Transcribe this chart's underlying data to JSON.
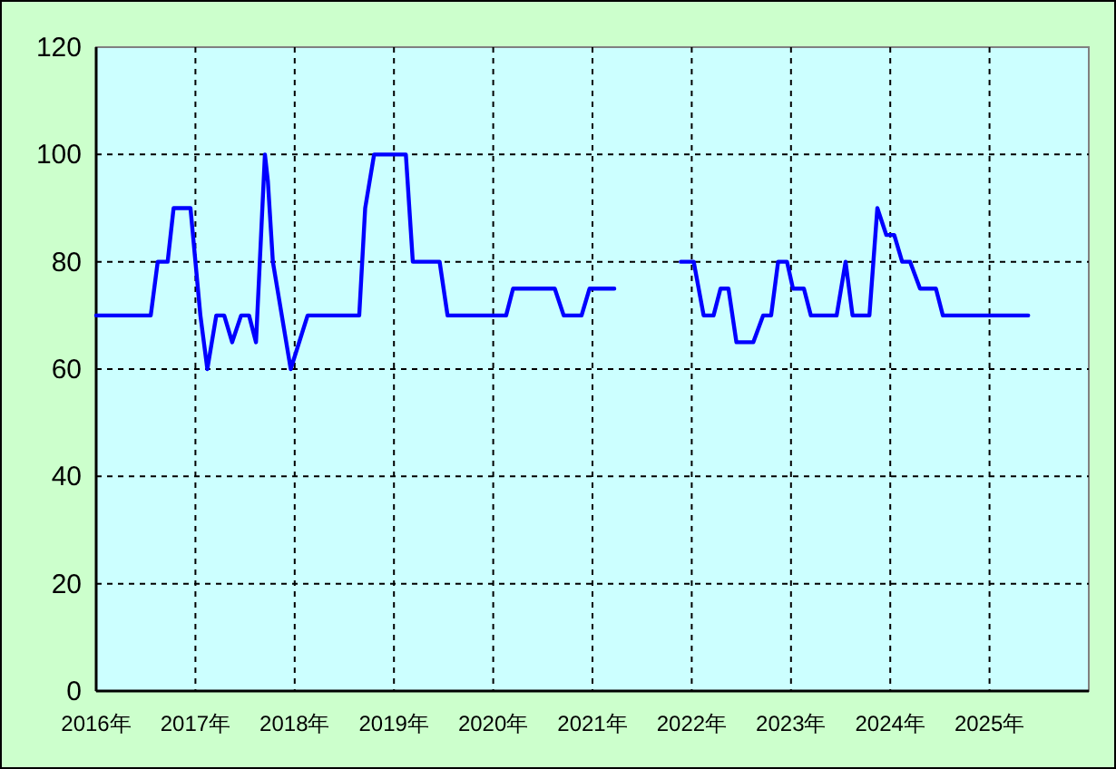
{
  "chart_data": {
    "type": "line",
    "color": "#0000ff",
    "x": [
      2016.0,
      2016.55,
      2016.62,
      2016.72,
      2016.78,
      2016.95,
      2017.05,
      2017.12,
      2017.21,
      2017.29,
      2017.37,
      2017.46,
      2017.54,
      2017.61,
      2017.7,
      2017.73,
      2017.78,
      2017.96,
      2018.13,
      2018.65,
      2018.71,
      2018.8,
      2019.12,
      2019.19,
      2019.46,
      2019.54,
      2020.13,
      2020.2,
      2020.62,
      2020.71,
      2020.89,
      2020.97,
      2021.22,
      null,
      2021.89,
      2022.02,
      2022.12,
      2022.22,
      2022.29,
      2022.37,
      2022.45,
      2022.62,
      2022.72,
      2022.8,
      2022.87,
      2022.96,
      2023.02,
      2023.13,
      2023.2,
      2023.46,
      2023.55,
      2023.62,
      2023.79,
      2023.87,
      2023.96,
      2024.04,
      2024.12,
      2024.2,
      2024.3,
      2024.46,
      2024.53,
      2025.39
    ],
    "values": [
      70,
      70,
      80,
      80,
      90,
      90,
      70,
      60,
      70,
      70,
      65,
      70,
      70,
      65,
      100,
      95,
      80,
      60,
      70,
      70,
      90,
      100,
      100,
      80,
      80,
      70,
      70,
      75,
      75,
      70,
      70,
      75,
      75,
      null,
      80,
      80,
      70,
      70,
      75,
      75,
      65,
      65,
      70,
      70,
      80,
      80,
      75,
      75,
      70,
      70,
      80,
      70,
      70,
      90,
      85,
      85,
      80,
      80,
      75,
      75,
      70,
      70
    ],
    "xlim": [
      2016,
      2026
    ],
    "xticks": [
      {
        "value": 2016,
        "label": "2016年"
      },
      {
        "value": 2017,
        "label": "2017年"
      },
      {
        "value": 2018,
        "label": "2018年"
      },
      {
        "value": 2019,
        "label": "2019年"
      },
      {
        "value": 2020,
        "label": "2020年"
      },
      {
        "value": 2021,
        "label": "2021年"
      },
      {
        "value": 2022,
        "label": "2022年"
      },
      {
        "value": 2023,
        "label": "2023年"
      },
      {
        "value": 2024,
        "label": "2024年"
      },
      {
        "value": 2025,
        "label": "2025年"
      }
    ],
    "ylim": [
      0,
      120
    ],
    "yticks": [
      0,
      20,
      40,
      60,
      80,
      100,
      120
    ],
    "grid": true,
    "marker": "none",
    "line_style": "solid"
  }
}
